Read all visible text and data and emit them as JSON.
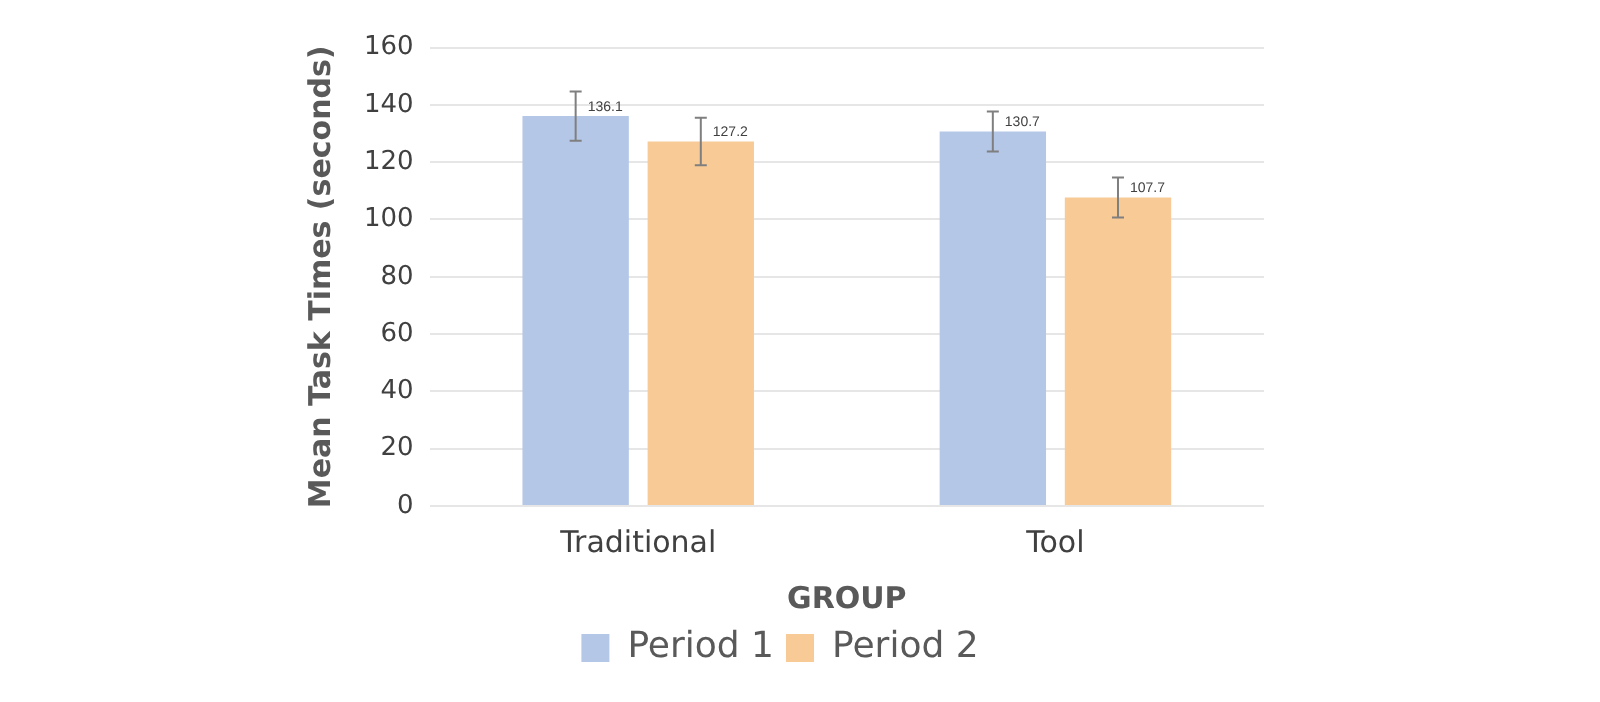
{
  "chart_data": {
    "type": "bar",
    "xlabel": "GROUP",
    "ylabel": "Mean Task Times (seconds)",
    "categories": [
      "Traditional",
      "Tool"
    ],
    "series": [
      {
        "name": "Period 1",
        "color": "#b4c7e7",
        "values": [
          136.1,
          130.7
        ],
        "errors": [
          8.6,
          7
        ]
      },
      {
        "name": "Period 2",
        "color": "#f8cb96",
        "values": [
          127.2,
          107.7
        ],
        "errors": [
          8.3,
          7
        ]
      }
    ],
    "ylim": [
      0,
      160
    ],
    "yticks": [
      0,
      20,
      40,
      60,
      80,
      100,
      120,
      140,
      160
    ],
    "grid": "y",
    "legend": "bottom",
    "data_labels": true
  }
}
